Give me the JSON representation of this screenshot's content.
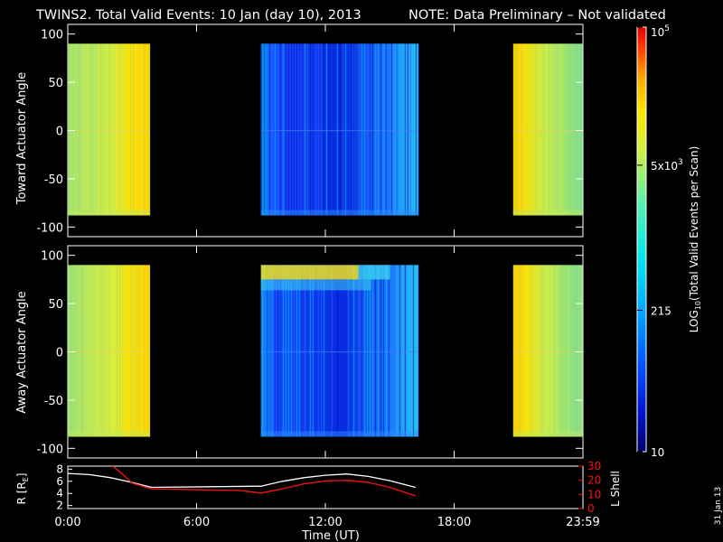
{
  "title": "TWINS2. Total Valid Events: 10 Jan (day  10), 2013",
  "note": "NOTE: Data Preliminary – Not validated",
  "plot_date": "31 Jan 13",
  "colors": {
    "note": "#ff2020",
    "rshell": "#ffffff",
    "lshell": "#ff1010",
    "background": "#000000"
  },
  "chart_data": [
    {
      "type": "heatmap",
      "ylabel": "Toward Actuator Angle",
      "ylim": [
        -110,
        110
      ],
      "yticks": [
        "100",
        "50",
        "0",
        "-50",
        "-100"
      ],
      "ytick_values": [
        100,
        50,
        0,
        -50,
        -100
      ],
      "time_range_hours": [
        0,
        24
      ],
      "angle_range": [
        -88,
        90
      ],
      "data_blocks": [
        {
          "start": "0:00",
          "end": "3:50",
          "level": "high (~1e3-5e3)"
        },
        {
          "start": "9:00",
          "end": "16:20",
          "level": "low (~10-200)"
        },
        {
          "start": "20:45",
          "end": "23:59",
          "level": "high (~1e3-5e3)"
        }
      ]
    },
    {
      "type": "heatmap",
      "ylabel": "Away Actuator Angle",
      "ylim": [
        -110,
        110
      ],
      "yticks": [
        "100",
        "50",
        "0",
        "-50",
        "-100"
      ],
      "ytick_values": [
        100,
        50,
        0,
        -50,
        -100
      ],
      "time_range_hours": [
        0,
        24
      ],
      "angle_range": [
        -88,
        90
      ],
      "data_blocks": [
        {
          "start": "0:00",
          "end": "3:50",
          "level": "high (~1e3-5e3)"
        },
        {
          "start": "9:00",
          "end": "16:20",
          "level": "low (~10-200), band near 80 deg elevated"
        },
        {
          "start": "20:45",
          "end": "23:59",
          "level": "high (~1e3-5e3)"
        }
      ]
    },
    {
      "type": "line",
      "ylabel_left": "R [RE]",
      "ylabel_left_sub": "E",
      "ylabel_right": "L Shell",
      "yticks_left": [
        "8",
        "6",
        "4",
        "2"
      ],
      "ytick_values_left": [
        8,
        6,
        4,
        2
      ],
      "yticks_right": [
        "30",
        "20",
        "10",
        "0"
      ],
      "ytick_values_right": [
        30,
        20,
        10,
        0
      ],
      "ylim_left": [
        1.5,
        8.5
      ],
      "ylim_right": [
        0,
        30
      ],
      "xlabel": "Time (UT)",
      "xticks": [
        "0:00",
        "6:00",
        "12:00",
        "18:00",
        "23:59"
      ],
      "xtick_hours": [
        0,
        6,
        12,
        18,
        24
      ],
      "series": [
        {
          "axis": "left",
          "x": [
            0,
            1,
            2,
            3,
            3.9,
            9,
            10,
            11,
            12,
            13,
            14,
            15,
            16.2
          ],
          "y": [
            7.3,
            7.1,
            6.6,
            5.8,
            5.0,
            5.2,
            6.0,
            6.6,
            7.0,
            7.2,
            6.8,
            6.1,
            5.0
          ]
        },
        {
          "axis": "right",
          "x": [
            2.0,
            2.5,
            3.0,
            3.9,
            6,
            8,
            9,
            10,
            11,
            12,
            13,
            14,
            15,
            16.2
          ],
          "y": [
            31,
            25,
            18,
            14,
            13.3,
            12.8,
            11,
            14,
            17.5,
            19.5,
            20,
            18.5,
            15,
            9
          ]
        }
      ]
    }
  ],
  "colorbar": {
    "label": "LOG10(Total Valid Events per Scan)",
    "label_sub": "10",
    "ticks": [
      {
        "text": "10",
        "value": 10
      },
      {
        "text": "215",
        "value": 215
      },
      {
        "text": "5x10",
        "sup": "3",
        "value": 5000
      },
      {
        "text": "10",
        "sup": "5",
        "value": 100000
      }
    ],
    "range": [
      10,
      100000
    ]
  }
}
